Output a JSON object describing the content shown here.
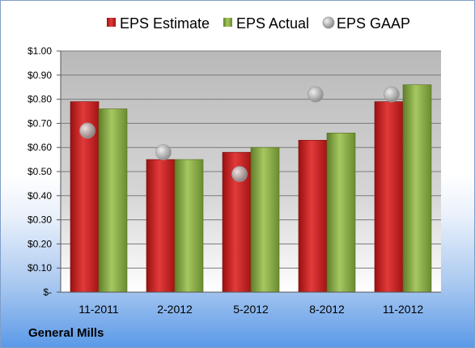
{
  "company": "General Mills",
  "chart_data": {
    "type": "bar",
    "categories": [
      "11-2011",
      "2-2012",
      "5-2012",
      "8-2012",
      "11-2012"
    ],
    "series": [
      {
        "name": "EPS Estimate",
        "type": "bar",
        "color": "#cc1f1f",
        "values": [
          0.79,
          0.55,
          0.58,
          0.63,
          0.79
        ]
      },
      {
        "name": "EPS Actual",
        "type": "bar",
        "color": "#8db04a",
        "values": [
          0.76,
          0.55,
          0.6,
          0.66,
          0.86
        ]
      },
      {
        "name": "EPS GAAP",
        "type": "scatter",
        "color": "#b8b8b8",
        "values": [
          0.67,
          0.58,
          0.49,
          0.82,
          0.82
        ]
      }
    ],
    "ylim": [
      0,
      1.0
    ],
    "y_ticks": [
      0,
      0.1,
      0.2,
      0.3,
      0.4,
      0.5,
      0.6,
      0.7,
      0.8,
      0.9,
      1.0
    ],
    "y_tick_labels": [
      "$-",
      "$0.10",
      "$0.20",
      "$0.30",
      "$0.40",
      "$0.50",
      "$0.60",
      "$0.70",
      "$0.80",
      "$0.90",
      "$1.00"
    ],
    "grid": true,
    "legend_position": "top"
  }
}
